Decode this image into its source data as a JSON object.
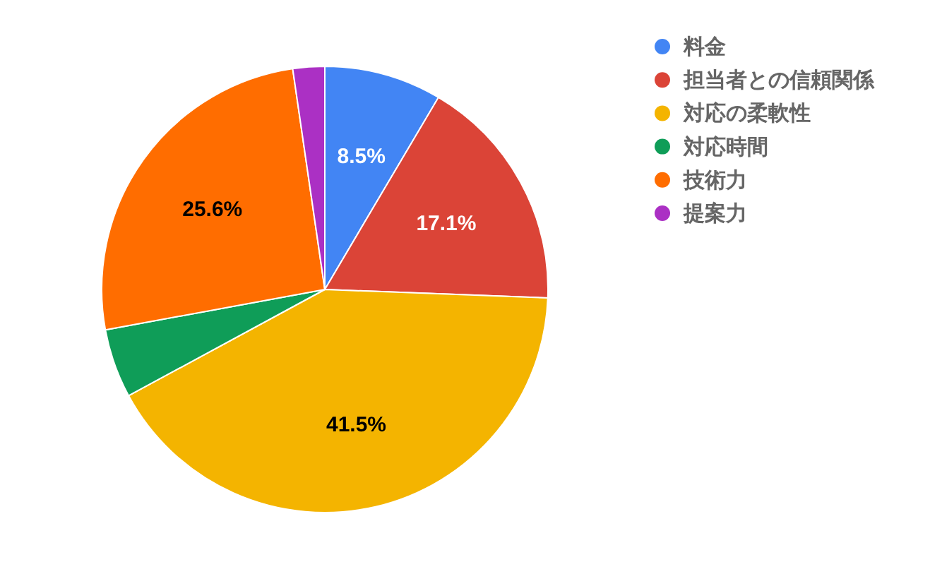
{
  "chart_data": {
    "type": "pie",
    "categories": [
      "料金",
      "担当者との信頼関係",
      "対応の柔軟性",
      "対応時間",
      "技術力",
      "提案力"
    ],
    "values": [
      8.5,
      17.1,
      41.5,
      5.0,
      25.6,
      2.3
    ],
    "colors": [
      "#4285f4",
      "#db4437",
      "#f4b400",
      "#0f9d58",
      "#ff6d00",
      "#ab30c4"
    ],
    "value_labels": [
      "8.5%",
      "17.1%",
      "41.5%",
      null,
      "25.6%",
      null
    ],
    "legend": "right"
  }
}
